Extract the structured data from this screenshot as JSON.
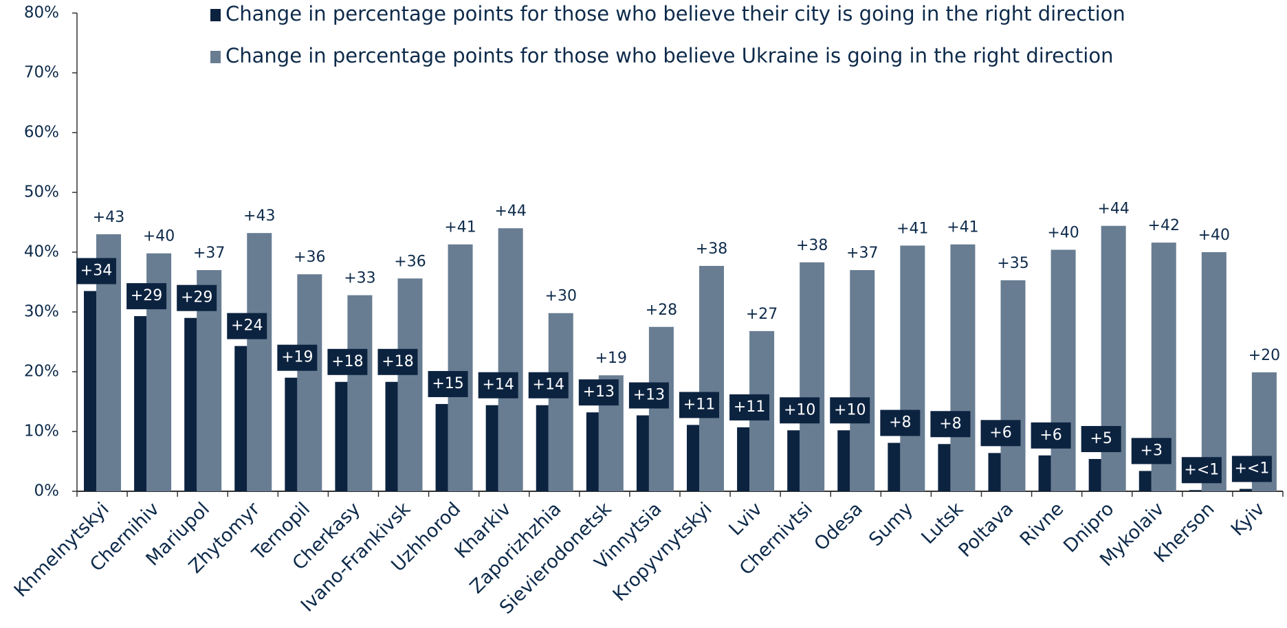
{
  "chart_data": {
    "type": "bar",
    "categories": [
      "Khmelnytskyi",
      "Chernihiv",
      "Mariupol",
      "Zhytomyr",
      "Ternopil",
      "Cherkasy",
      "Ivano-Frankivsk",
      "Uzhhorod",
      "Kharkiv",
      "Zaporizhzhia",
      "Sievierodonetsk",
      "Vinnytsia",
      "Kropyvnytskyi",
      "Lviv",
      "Chernivtsi",
      "Odesa",
      "Sumy",
      "Lutsk",
      "Poltava",
      "Rivne",
      "Dnipro",
      "Mykolaiv",
      "Kherson",
      "Kyiv"
    ],
    "series": [
      {
        "name": "Change in percentage points for those who believe their city is going in the right direction",
        "color": "#0c2340",
        "values": [
          33.5,
          29.3,
          29,
          24.3,
          19,
          18.3,
          18.3,
          14.6,
          14.4,
          14.4,
          13.2,
          12.7,
          11.1,
          10.7,
          10.2,
          10.2,
          8.1,
          7.9,
          6.4,
          6,
          5.4,
          3.4,
          0.2,
          0.4
        ],
        "value_labels": [
          "+34",
          "+29",
          "+29",
          "+24",
          "+19",
          "+18",
          "+18",
          "+15",
          "+14",
          "+14",
          "+13",
          "+13",
          "+11",
          "+11",
          "+10",
          "+10",
          "+8",
          "+8",
          "+6",
          "+6",
          "+5",
          "+3",
          "+<1",
          "+<1"
        ]
      },
      {
        "name": "Change in percentage points for those who believe Ukraine is going in the right direction",
        "color": "#687d92",
        "values": [
          43,
          39.8,
          37,
          43.2,
          36.3,
          32.8,
          35.6,
          41.3,
          44,
          29.8,
          19.4,
          27.5,
          37.7,
          26.8,
          38.3,
          37,
          41.1,
          41.3,
          35.3,
          40.4,
          44.4,
          41.6,
          40,
          19.9
        ],
        "value_labels": [
          "+43",
          "+40",
          "+37",
          "+43",
          "+36",
          "+33",
          "+36",
          "+41",
          "+44",
          "+30",
          "+19",
          "+28",
          "+38",
          "+27",
          "+38",
          "+37",
          "+41",
          "+41",
          "+35",
          "+40",
          "+44",
          "+42",
          "+40",
          "+20"
        ]
      }
    ],
    "ylim": [
      0,
      80
    ],
    "yticks": [
      {
        "value": 0,
        "label": "0%"
      },
      {
        "value": 10,
        "label": "10%"
      },
      {
        "value": 20,
        "label": "20%"
      },
      {
        "value": 30,
        "label": "30%"
      },
      {
        "value": 40,
        "label": "40%"
      },
      {
        "value": 50,
        "label": "50%"
      },
      {
        "value": 60,
        "label": "60%"
      },
      {
        "value": 70,
        "label": "70%"
      },
      {
        "value": 80,
        "label": "80%"
      }
    ]
  }
}
